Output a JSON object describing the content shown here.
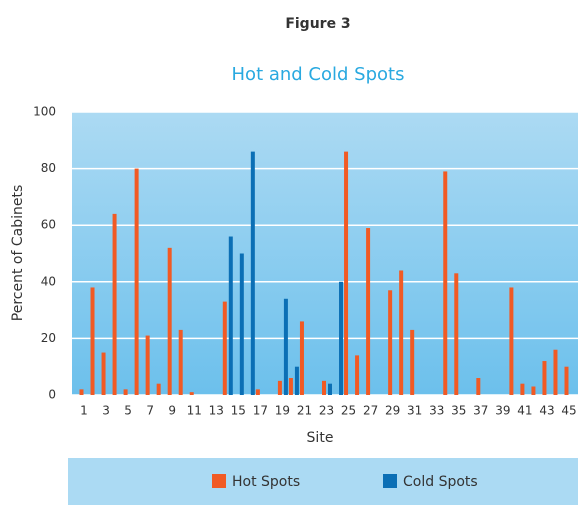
{
  "chart_data": {
    "type": "bar",
    "figure_label": "Figure 3",
    "title": "Hot and Cold Spots",
    "x_label": "Site",
    "y_label": "Percent of Cabinets",
    "categories": [
      1,
      null,
      3,
      null,
      5,
      null,
      7,
      null,
      9,
      null,
      11,
      null,
      13,
      null,
      15,
      null,
      17,
      null,
      19,
      null,
      21,
      null,
      23,
      null,
      25,
      null,
      27,
      null,
      29,
      null,
      31,
      null,
      33,
      null,
      35,
      null,
      37,
      null,
      39,
      null,
      41,
      null,
      43,
      null,
      45
    ],
    "series": [
      {
        "name": "Hot Spots",
        "color": "#f15a24",
        "values": [
          2,
          38,
          15,
          64,
          2,
          80,
          21,
          4,
          52,
          23,
          1,
          0,
          0,
          33,
          0,
          0,
          2,
          0,
          5,
          6,
          26,
          0,
          5,
          0,
          86,
          14,
          59,
          0,
          37,
          44,
          23,
          0,
          0,
          79,
          43,
          0,
          6,
          0,
          0,
          38,
          4,
          3,
          12,
          16,
          10
        ]
      },
      {
        "name": "Cold Spots",
        "color": "#0b6fb5",
        "values": [
          0,
          0,
          0,
          0,
          0,
          0,
          0,
          0,
          0,
          0,
          0,
          0,
          0,
          56,
          50,
          86,
          0,
          0,
          34,
          10,
          0,
          0,
          4,
          40,
          0,
          0,
          0,
          0,
          0,
          0,
          0,
          0,
          0,
          0,
          0,
          0,
          0,
          0,
          0,
          0,
          0,
          0,
          0,
          0,
          0
        ]
      }
    ],
    "ylim": [
      0,
      100
    ],
    "yticks": [
      0,
      20,
      40,
      60,
      80,
      100
    ],
    "grid": true,
    "legend": "bottom"
  }
}
